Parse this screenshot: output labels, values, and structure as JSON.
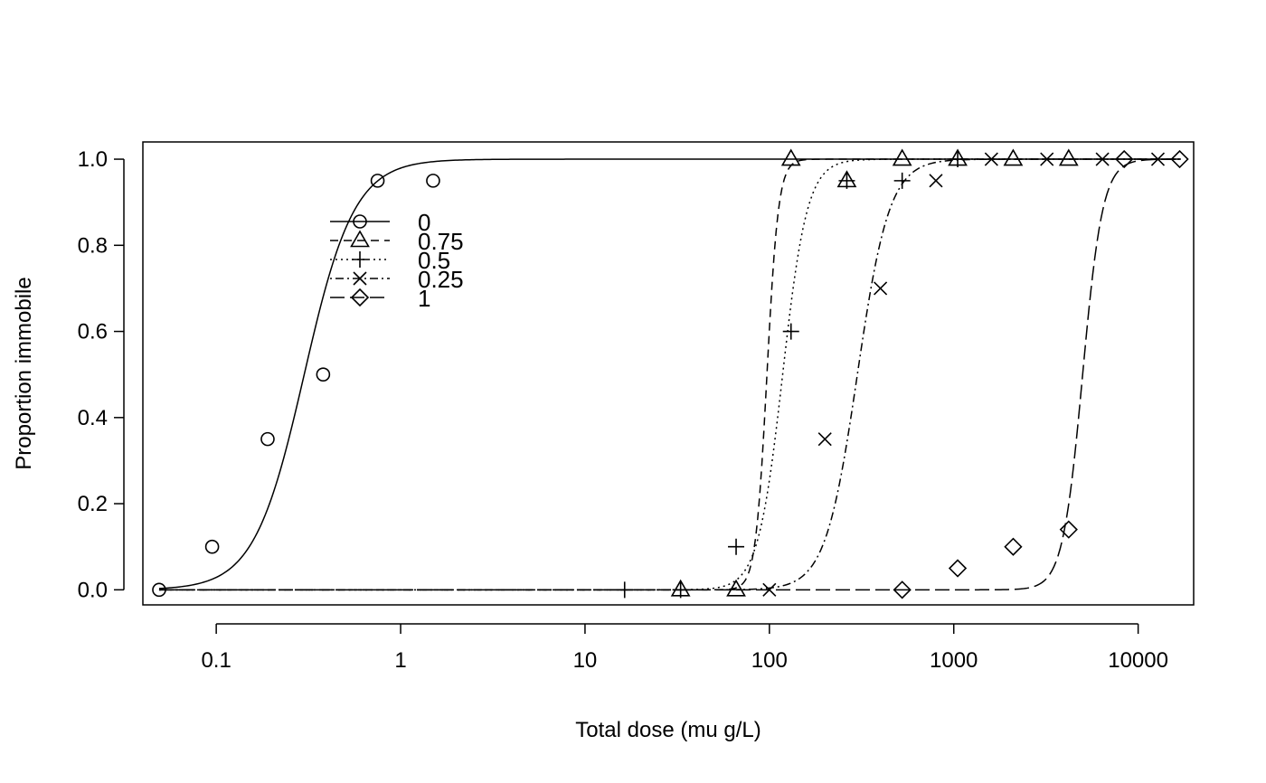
{
  "chart_data": {
    "type": "scatter",
    "xlabel": "Total dose (mu g/L)",
    "ylabel": "Proportion immobile",
    "x_scale": "log",
    "xlim": [
      0.04,
      20000
    ],
    "ylim": [
      -0.035,
      1.04
    ],
    "x_ticks": [
      0.1,
      1,
      10,
      100,
      1000,
      10000
    ],
    "x_tick_labels": [
      "0.1",
      "1",
      "10",
      "100",
      "1000",
      "10000"
    ],
    "y_ticks": [
      0,
      0.2,
      0.4,
      0.6,
      0.8,
      1.0
    ],
    "y_tick_labels": [
      "0.0",
      "0.2",
      "0.4",
      "0.6",
      "0.8",
      "1.0"
    ],
    "grid": false,
    "legend_position": "top-left",
    "series": [
      {
        "name": "0",
        "marker": "circle",
        "line_style": "solid",
        "x": [
          0.049,
          0.095,
          0.19,
          0.38,
          0.75,
          1.5
        ],
        "y": [
          0.0,
          0.1,
          0.35,
          0.5,
          0.95,
          0.95
        ],
        "curve": {
          "ec50": 0.3,
          "slope": 3.2,
          "x_range": [
            0.049,
            17000
          ]
        }
      },
      {
        "name": "0.75",
        "marker": "triangle",
        "line_style": "dashed",
        "x": [
          33,
          66,
          131,
          263,
          525,
          1050,
          2100,
          4200
        ],
        "y": [
          0.0,
          0.0,
          1.0,
          0.95,
          1.0,
          1.0,
          1.0,
          1.0
        ],
        "curve": {
          "ec50": 97,
          "slope": 14,
          "x_range": [
            0.049,
            17000
          ]
        }
      },
      {
        "name": "0.5",
        "marker": "plus",
        "line_style": "dotted",
        "x": [
          16.4,
          33,
          66,
          131,
          263,
          525,
          1050
        ],
        "y": [
          0.0,
          0.0,
          0.1,
          0.6,
          0.95,
          0.95,
          1.0
        ],
        "curve": {
          "ec50": 118,
          "slope": 6.5,
          "x_range": [
            0.049,
            17000
          ]
        }
      },
      {
        "name": "0.25",
        "marker": "cross",
        "line_style": "dotdash",
        "x": [
          100,
          200,
          400,
          800,
          1600,
          3200,
          6400,
          12800
        ],
        "y": [
          0.0,
          0.35,
          0.7,
          0.95,
          1.0,
          1.0,
          1.0,
          1.0
        ],
        "curve": {
          "ec50": 300,
          "slope": 5.0,
          "x_range": [
            0.049,
            17000
          ]
        }
      },
      {
        "name": "1",
        "marker": "diamond",
        "line_style": "longdash",
        "x": [
          525,
          1050,
          2100,
          4200,
          8400,
          16800
        ],
        "y": [
          0.0,
          0.05,
          0.1,
          0.14,
          1.0,
          1.0
        ],
        "curve": {
          "ec50": 5000,
          "slope": 8.0,
          "x_range": [
            0.049,
            17000
          ]
        }
      }
    ]
  }
}
